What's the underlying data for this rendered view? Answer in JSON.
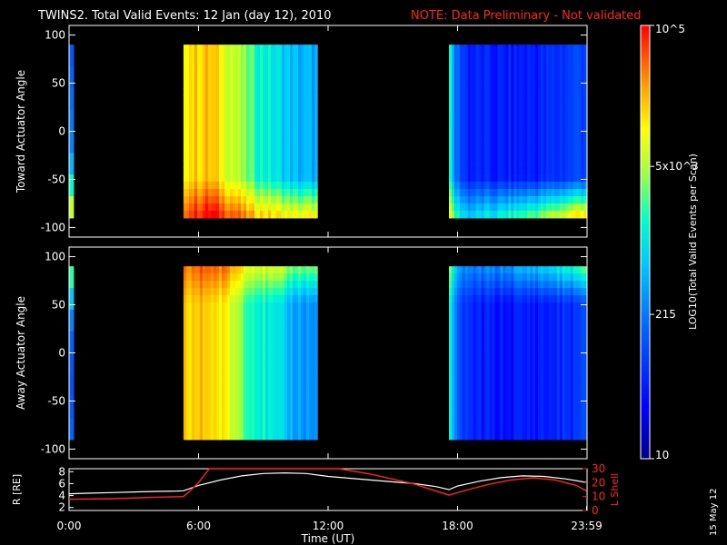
{
  "title": {
    "main": "TWINS2. Total Valid Events: 12 Jan (day  12), 2010",
    "note": "NOTE: Data Preliminary - Not validated"
  },
  "stamp": "15 May 12",
  "colors": {
    "background": "#000000",
    "text": "#ffffff",
    "note": "#ff2020",
    "lshell": "#ff2020",
    "radius": "#ffffff"
  },
  "chart_data": [
    {
      "type": "heatmap",
      "name": "toward",
      "ylabel": "Toward Actuator Angle",
      "ylim": [
        -110,
        110
      ],
      "yticks": [
        100,
        50,
        0,
        -50,
        -100
      ],
      "xlim": [
        0,
        24
      ],
      "data_y_range": [
        -90,
        90
      ],
      "blocks": [
        {
          "t_start": 0.0,
          "t_end": 0.2,
          "base": [
            0.28,
            0.3,
            0.32,
            0.33,
            0.35,
            0.42,
            0.55,
            0.7
          ]
        },
        {
          "t_start": 5.3,
          "t_end": 11.5,
          "profile": [
            [
              5.3,
              0.8
            ],
            [
              6.5,
              0.82
            ],
            [
              7.5,
              0.72
            ],
            [
              8.5,
              0.58
            ],
            [
              9.5,
              0.5
            ],
            [
              10.5,
              0.42
            ],
            [
              11.5,
              0.4
            ]
          ],
          "bottom_boost": 0.35
        },
        {
          "t_start": 17.6,
          "t_end": 23.98,
          "profile": [
            [
              17.6,
              0.55
            ],
            [
              17.9,
              0.32
            ],
            [
              18.5,
              0.18
            ],
            [
              20,
              0.16
            ],
            [
              22,
              0.18
            ],
            [
              23.98,
              0.26
            ]
          ],
          "bottom_boost": 0.55
        }
      ]
    },
    {
      "type": "heatmap",
      "name": "away",
      "ylabel": "Away Actuator Angle",
      "ylim": [
        -110,
        110
      ],
      "yticks": [
        100,
        50,
        0,
        -50,
        -100
      ],
      "xlim": [
        0,
        24
      ],
      "data_y_range": [
        -90,
        90
      ],
      "blocks": [
        {
          "t_start": 0.0,
          "t_end": 0.2,
          "base": [
            0.58,
            0.45,
            0.35,
            0.3,
            0.28,
            0.27,
            0.28,
            0.3
          ]
        },
        {
          "t_start": 5.3,
          "t_end": 11.5,
          "profile": [
            [
              5.3,
              0.8
            ],
            [
              6.5,
              0.82
            ],
            [
              7.5,
              0.72
            ],
            [
              8.5,
              0.58
            ],
            [
              9.5,
              0.48
            ],
            [
              10.5,
              0.4
            ],
            [
              11.5,
              0.36
            ]
          ],
          "top_boost": 0.25
        },
        {
          "t_start": 17.6,
          "t_end": 23.98,
          "profile": [
            [
              17.6,
              0.55
            ],
            [
              17.9,
              0.3
            ],
            [
              18.5,
              0.18
            ],
            [
              20,
              0.15
            ],
            [
              22,
              0.17
            ],
            [
              23.98,
              0.22
            ]
          ],
          "top_boost": 0.35
        }
      ]
    },
    {
      "type": "line",
      "name": "orbit",
      "ylabel_left": "R [RE]",
      "ylabel_right": "L Shell",
      "xlabel": "Time (UT)",
      "xticks": [
        "0:00",
        "6:00",
        "12:00",
        "18:00",
        "23:59"
      ],
      "xtick_values": [
        0,
        6,
        12,
        18,
        23.98
      ],
      "ylim_left": [
        1.5,
        8.5
      ],
      "yticks_left": [
        8,
        6,
        4,
        2
      ],
      "ylim_right": [
        0,
        30
      ],
      "yticks_right": [
        30,
        20,
        10,
        0
      ],
      "radius": {
        "x": [
          0,
          1,
          2,
          3,
          4,
          5,
          5.3,
          6,
          7,
          8,
          9,
          10,
          11,
          12,
          13,
          14,
          15,
          16,
          17,
          17.6,
          18,
          19,
          20,
          21,
          22,
          23,
          23.98
        ],
        "y": [
          4.3,
          4.4,
          4.5,
          4.6,
          4.7,
          4.75,
          4.8,
          5.7,
          6.6,
          7.3,
          7.7,
          7.8,
          7.7,
          7.2,
          6.9,
          6.6,
          6.3,
          6.0,
          5.5,
          5.0,
          5.6,
          6.4,
          7.0,
          7.3,
          7.2,
          6.8,
          6.2
        ]
      },
      "lshell": {
        "x": [
          0,
          2,
          4,
          5.3,
          5.6,
          6,
          6.5,
          12.5,
          14,
          16,
          17.6,
          18.5,
          19.5,
          20.5,
          21.5,
          22.5,
          23.5,
          23.98
        ],
        "y": [
          8,
          8.5,
          9.5,
          10,
          14,
          20,
          30,
          30,
          26,
          19,
          11,
          15,
          19,
          22,
          23.5,
          22,
          18,
          14
        ]
      }
    },
    {
      "type": "colorbar",
      "name": "colorbar",
      "label": "LOG10(Total Valid Events per Scan)",
      "range": [
        10,
        100000
      ],
      "ticks": [
        {
          "value": 100000,
          "label": "10^5"
        },
        {
          "value": 5000,
          "label": "5x10^3"
        },
        {
          "value": 215,
          "label": "215"
        },
        {
          "value": 10,
          "label": "10"
        }
      ]
    }
  ]
}
